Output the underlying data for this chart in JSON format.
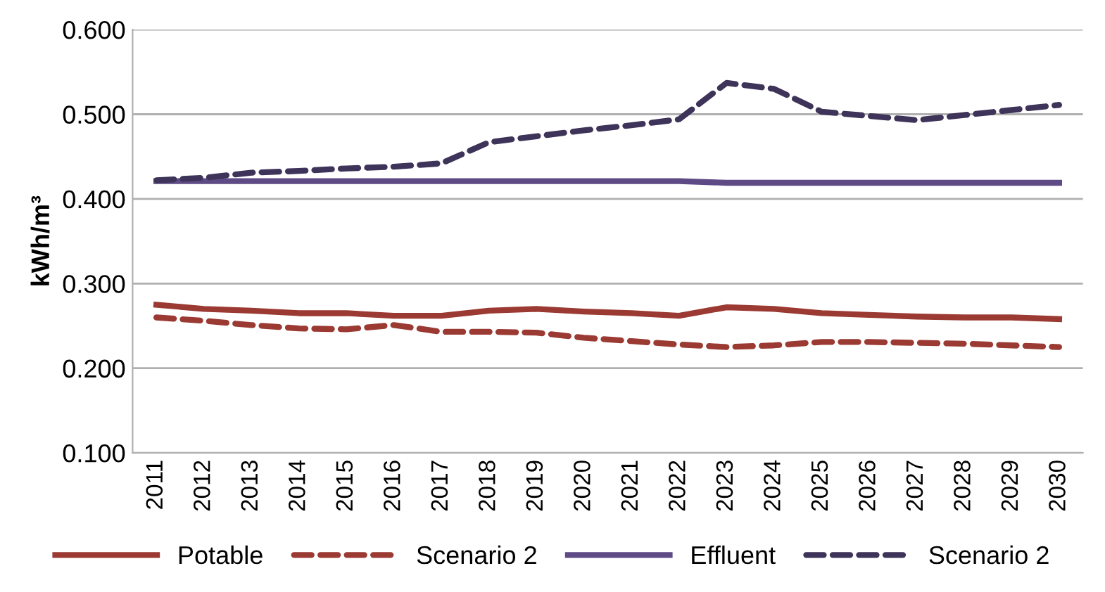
{
  "chart_data": {
    "type": "line",
    "ylabel": "kWh/m³",
    "categories": [
      "2011",
      "2012",
      "2013",
      "2014",
      "2015",
      "2016",
      "2017",
      "2018",
      "2019",
      "2020",
      "2021",
      "2022",
      "2023",
      "2024",
      "2025",
      "2026",
      "2027",
      "2028",
      "2029",
      "2030"
    ],
    "series": [
      {
        "name": "Potable",
        "color": "#9b3a32",
        "line_style": "solid",
        "values": [
          0.275,
          0.27,
          0.268,
          0.265,
          0.265,
          0.262,
          0.262,
          0.268,
          0.27,
          0.267,
          0.265,
          0.262,
          0.272,
          0.27,
          0.265,
          0.263,
          0.261,
          0.26,
          0.26,
          0.258
        ]
      },
      {
        "name": "Scenario 2",
        "color": "#9b3a32",
        "line_style": "dashed",
        "values": [
          0.26,
          0.256,
          0.251,
          0.247,
          0.246,
          0.251,
          0.243,
          0.243,
          0.242,
          0.236,
          0.232,
          0.228,
          0.225,
          0.227,
          0.231,
          0.231,
          0.23,
          0.229,
          0.227,
          0.225
        ]
      },
      {
        "name": "Effluent",
        "color": "#5e4b85",
        "line_style": "solid",
        "values": [
          0.421,
          0.421,
          0.421,
          0.421,
          0.421,
          0.421,
          0.421,
          0.421,
          0.421,
          0.421,
          0.421,
          0.421,
          0.419,
          0.419,
          0.419,
          0.419,
          0.419,
          0.419,
          0.419,
          0.419
        ]
      },
      {
        "name": "Scenario 2",
        "color": "#3e3358",
        "line_style": "dashed",
        "values": [
          0.422,
          0.425,
          0.431,
          0.433,
          0.436,
          0.438,
          0.442,
          0.467,
          0.474,
          0.481,
          0.487,
          0.494,
          0.537,
          0.53,
          0.503,
          0.498,
          0.493,
          0.499,
          0.505,
          0.511
        ]
      }
    ],
    "ylim": [
      0.1,
      0.6
    ],
    "yticks": [
      {
        "value": 0.1,
        "label": "0.100"
      },
      {
        "value": 0.2,
        "label": "0.200"
      },
      {
        "value": 0.3,
        "label": "0.300"
      },
      {
        "value": 0.4,
        "label": "0.400"
      },
      {
        "value": 0.5,
        "label": "0.500"
      },
      {
        "value": 0.6,
        "label": "0.600"
      }
    ],
    "grid": "y",
    "legend": "bottom",
    "marker": "none"
  }
}
